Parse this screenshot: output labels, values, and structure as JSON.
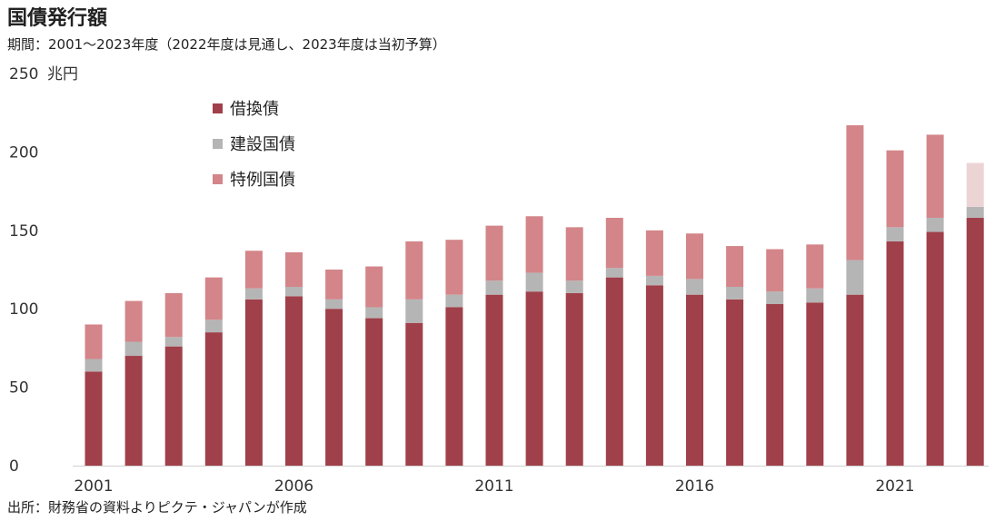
{
  "title": "国債発行額",
  "subtitle": "期間：2001～2023年度（2022年度は見通し、2023年度は当初予算）",
  "source": "出所：財務省の資料よりピクテ・ジャパンが作成",
  "chart_data": {
    "type": "bar",
    "stacked": true,
    "title": "国債発行額",
    "ylabel": "兆円",
    "ylim": [
      0,
      250
    ],
    "yticks": [
      0,
      50,
      100,
      150,
      200,
      250
    ],
    "x_tick_labels": [
      "2001",
      "2006",
      "2011",
      "2016",
      "2021"
    ],
    "categories": [
      "2001",
      "2002",
      "2003",
      "2004",
      "2005",
      "2006",
      "2007",
      "2008",
      "2009",
      "2010",
      "2011",
      "2012",
      "2013",
      "2014",
      "2015",
      "2016",
      "2017",
      "2018",
      "2019",
      "2020",
      "2021",
      "2022",
      "2023"
    ],
    "legend_position": "top-left",
    "series": [
      {
        "name": "借換債",
        "color": "#a0404a",
        "values": [
          60,
          70,
          76,
          85,
          106,
          108,
          100,
          94,
          91,
          101,
          109,
          111,
          110,
          120,
          115,
          109,
          106,
          103,
          104,
          109,
          143,
          149,
          158
        ]
      },
      {
        "name": "建設国債",
        "color": "#b5b5b5",
        "values": [
          8,
          9,
          6,
          8,
          7,
          6,
          6,
          7,
          15,
          8,
          9,
          12,
          8,
          6,
          6,
          10,
          8,
          8,
          9,
          22,
          9,
          9,
          7
        ]
      },
      {
        "name": "特例国債",
        "color": "#d38589",
        "values": [
          22,
          26,
          28,
          27,
          24,
          22,
          19,
          26,
          37,
          35,
          35,
          36,
          34,
          32,
          29,
          29,
          26,
          27,
          28,
          86,
          49,
          53,
          28
        ]
      }
    ],
    "highlight": {
      "category": "2023",
      "series": "特例国債",
      "color": "#ecd4d5"
    },
    "grid": false
  }
}
